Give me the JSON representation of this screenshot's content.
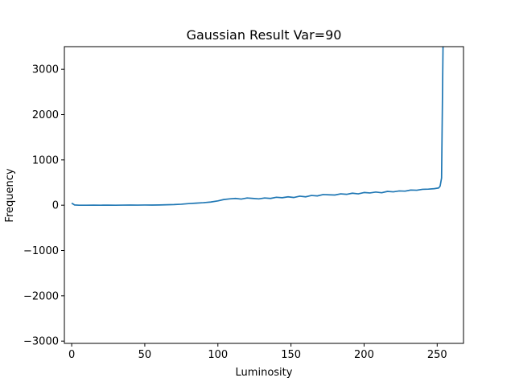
{
  "chart_data": {
    "type": "line",
    "title": "Gaussian Result Var=90",
    "xlabel": "Luminosity",
    "ylabel": "Frequency",
    "xlim": [
      -5,
      268
    ],
    "ylim": [
      -3050,
      3500
    ],
    "xticks": [
      0,
      50,
      100,
      150,
      200,
      250
    ],
    "yticks": [
      -3000,
      -2000,
      -1000,
      0,
      1000,
      2000,
      3000
    ],
    "grid": false,
    "series": [
      {
        "name": "",
        "color": "#1f77b4",
        "points": [
          [
            0,
            45
          ],
          [
            2,
            5
          ],
          [
            5,
            0
          ],
          [
            10,
            0
          ],
          [
            15,
            2
          ],
          [
            20,
            0
          ],
          [
            25,
            2
          ],
          [
            30,
            0
          ],
          [
            35,
            2
          ],
          [
            40,
            3
          ],
          [
            45,
            2
          ],
          [
            50,
            4
          ],
          [
            55,
            3
          ],
          [
            60,
            6
          ],
          [
            65,
            10
          ],
          [
            70,
            14
          ],
          [
            75,
            22
          ],
          [
            80,
            35
          ],
          [
            85,
            45
          ],
          [
            90,
            55
          ],
          [
            95,
            70
          ],
          [
            100,
            95
          ],
          [
            104,
            125
          ],
          [
            108,
            140
          ],
          [
            112,
            150
          ],
          [
            116,
            135
          ],
          [
            120,
            160
          ],
          [
            124,
            150
          ],
          [
            128,
            140
          ],
          [
            132,
            160
          ],
          [
            136,
            150
          ],
          [
            140,
            175
          ],
          [
            144,
            165
          ],
          [
            148,
            185
          ],
          [
            152,
            170
          ],
          [
            156,
            200
          ],
          [
            160,
            185
          ],
          [
            164,
            215
          ],
          [
            168,
            205
          ],
          [
            172,
            235
          ],
          [
            176,
            230
          ],
          [
            180,
            225
          ],
          [
            184,
            250
          ],
          [
            188,
            240
          ],
          [
            192,
            265
          ],
          [
            196,
            250
          ],
          [
            200,
            280
          ],
          [
            204,
            270
          ],
          [
            208,
            290
          ],
          [
            212,
            275
          ],
          [
            216,
            305
          ],
          [
            220,
            295
          ],
          [
            224,
            315
          ],
          [
            228,
            310
          ],
          [
            232,
            335
          ],
          [
            236,
            330
          ],
          [
            240,
            350
          ],
          [
            244,
            355
          ],
          [
            248,
            365
          ],
          [
            251,
            380
          ],
          [
            252,
            420
          ],
          [
            253,
            600
          ],
          [
            254,
            3500
          ]
        ]
      }
    ]
  }
}
